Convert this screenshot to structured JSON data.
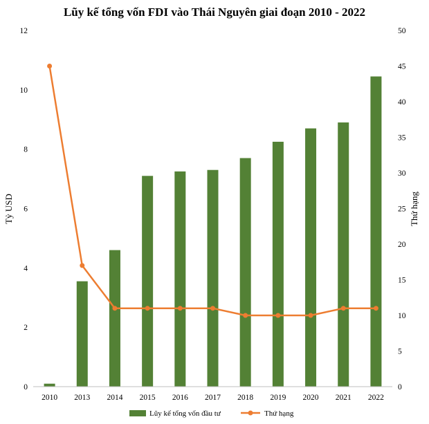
{
  "chart_data": {
    "type": "bar",
    "title": "Lũy kế tổng vốn FDI vào Thái Nguyên giai đoạn 2010 - 2022",
    "categories": [
      "2010",
      "2013",
      "2014",
      "2015",
      "2016",
      "2017",
      "2018",
      "2019",
      "2020",
      "2021",
      "2022"
    ],
    "series": [
      {
        "name": "Lũy kế tổng vốn đầu tư",
        "type": "bar",
        "axis": "left",
        "color": "#538135",
        "values": [
          0.1,
          3.55,
          4.6,
          7.1,
          7.25,
          7.3,
          7.7,
          8.25,
          8.7,
          8.9,
          10.45
        ]
      },
      {
        "name": "Thứ hạng",
        "type": "line",
        "axis": "right",
        "color": "#ED7D31",
        "values": [
          45,
          17,
          11,
          11,
          11,
          11,
          10,
          10,
          10,
          11,
          11
        ]
      }
    ],
    "ylabel": "Tỷ USD",
    "y2label": "Thứ hạng",
    "ylim": [
      0,
      12
    ],
    "y2lim": [
      0,
      50
    ],
    "yticks": [
      0,
      2,
      4,
      6,
      8,
      10,
      12
    ],
    "y2ticks": [
      0,
      5,
      10,
      15,
      20,
      25,
      30,
      35,
      40,
      45,
      50
    ],
    "grid": false,
    "legend": "bottom"
  }
}
